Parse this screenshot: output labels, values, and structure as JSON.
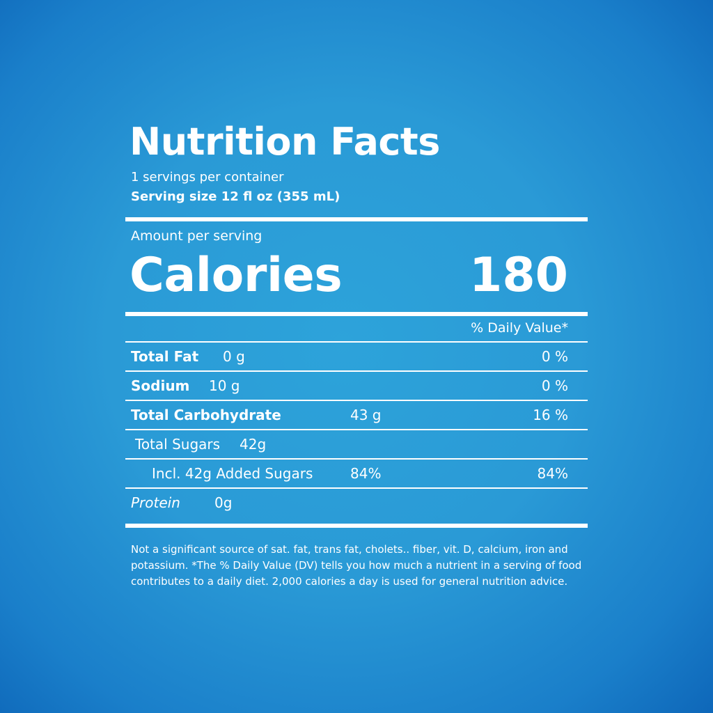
{
  "title": "Nutrition Facts",
  "servings": "1 servings per container",
  "serving_size": "Serving size 12 fl oz (355 mL)",
  "amount_label": "Amount per serving",
  "calories_label": "Calories",
  "calories": "180",
  "daily_value_header": "% Daily Value*",
  "rows": [
    {
      "label": "Total Fat",
      "amount": "0 g",
      "dv": "0 %"
    },
    {
      "label": "Sodium",
      "amount": "10 g",
      "dv": "0 %"
    },
    {
      "label": "Total Carbohydrate",
      "amount": "43 g",
      "dv": "16 %"
    },
    {
      "label": "Total Sugars",
      "amount": "42g"
    },
    {
      "label": "Incl. 42g Added Sugars",
      "amount": "84%",
      "dv": "84%"
    },
    {
      "label": "Protein",
      "amount": "0g"
    }
  ],
  "footnote": "Not a significant source of sat. fat, trans fat, cholets.. fiber, vit. D, calcium, iron and potassium. *The % Daily Value (DV) tells you how much a nutrient in a serving of food contributes to a daily diet. 2,000 calories a day is used for general nutrition advice."
}
